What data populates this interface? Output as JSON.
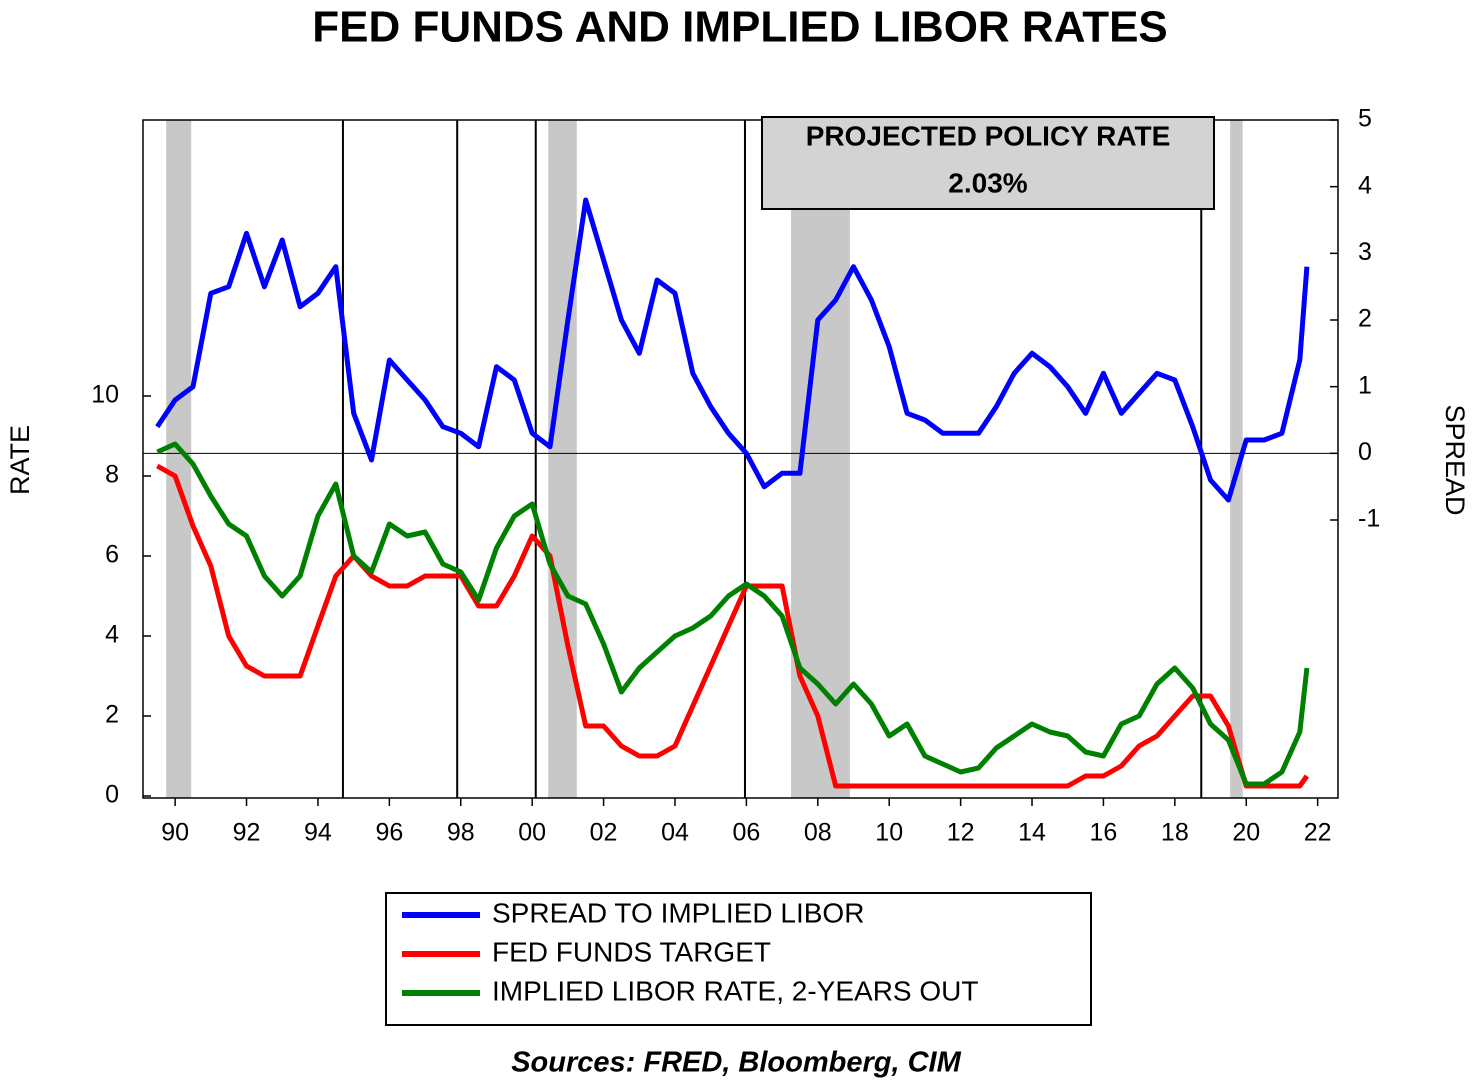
{
  "chart_data": {
    "type": "line",
    "title": "FED FUNDS AND IMPLIED LIBOR RATES",
    "y_label": "RATE",
    "y2_label": "SPREAD",
    "source": "Sources:  FRED, Bloomberg, CIM",
    "annotation": {
      "title": "PROJECTED POLICY RATE",
      "value": 2.03,
      "value_label": "2.03%"
    },
    "xlim": [
      1989.6,
      2023.07
    ],
    "xticks": [
      {
        "value": 1990.5,
        "label": "90"
      },
      {
        "value": 1992.5,
        "label": "92"
      },
      {
        "value": 1994.5,
        "label": "94"
      },
      {
        "value": 1996.5,
        "label": "96"
      },
      {
        "value": 1998.5,
        "label": "98"
      },
      {
        "value": 2000.5,
        "label": "00"
      },
      {
        "value": 2002.5,
        "label": "02"
      },
      {
        "value": 2004.5,
        "label": "04"
      },
      {
        "value": 2006.5,
        "label": "06"
      },
      {
        "value": 2008.5,
        "label": "08"
      },
      {
        "value": 2010.5,
        "label": "10"
      },
      {
        "value": 2012.5,
        "label": "12"
      },
      {
        "value": 2014.5,
        "label": "14"
      },
      {
        "value": 2016.5,
        "label": "16"
      },
      {
        "value": 2018.5,
        "label": "18"
      },
      {
        "value": 2020.5,
        "label": "20"
      },
      {
        "value": 2022.5,
        "label": "22"
      }
    ],
    "ylim": [
      -0.05,
      16.9
    ],
    "yticks": [
      0,
      2,
      4,
      6,
      8,
      10
    ],
    "y2lim": [
      -5.17,
      5
    ],
    "y2ticks": [
      -1,
      0,
      1,
      2,
      3,
      4,
      5
    ],
    "y2_zero_line": 0,
    "recessions": [
      [
        1990.25,
        1990.95
      ],
      [
        2000.95,
        2001.75
      ],
      [
        2007.75,
        2009.4
      ],
      [
        2020.05,
        2020.4
      ]
    ],
    "vlines": [
      1995.2,
      1998.4,
      2000.6,
      2006.46,
      2019.24
    ],
    "x": [
      1990,
      1990.5,
      1991,
      1991.5,
      1992,
      1992.5,
      1993,
      1993.5,
      1994,
      1994.5,
      1995,
      1995.5,
      1996,
      1996.5,
      1997,
      1997.5,
      1998,
      1998.5,
      1999,
      1999.5,
      2000,
      2000.5,
      2001,
      2001.5,
      2002,
      2002.5,
      2003,
      2003.5,
      2004,
      2004.5,
      2005,
      2005.5,
      2006,
      2006.5,
      2007,
      2007.5,
      2008,
      2008.5,
      2009,
      2009.5,
      2010,
      2010.5,
      2011,
      2011.5,
      2012,
      2012.5,
      2013,
      2013.5,
      2014,
      2014.5,
      2015,
      2015.5,
      2016,
      2016.5,
      2017,
      2017.5,
      2018,
      2018.5,
      2019,
      2019.5,
      2020,
      2020.5,
      2021,
      2021.5,
      2022,
      2022.2
    ],
    "series": [
      {
        "name": "SPREAD TO IMPLIED LIBOR",
        "color": "#0000ff",
        "axis": "y2",
        "values": [
          0.4,
          0.8,
          1.0,
          2.4,
          2.5,
          3.3,
          2.5,
          3.2,
          2.2,
          2.4,
          2.8,
          0.6,
          -0.1,
          1.4,
          1.1,
          0.8,
          0.4,
          0.3,
          0.1,
          1.3,
          1.1,
          0.3,
          0.1,
          2.0,
          3.8,
          2.9,
          2.0,
          1.5,
          2.6,
          2.4,
          1.2,
          0.7,
          0.3,
          0.0,
          -0.5,
          -0.3,
          -0.3,
          2.0,
          2.3,
          2.8,
          2.3,
          1.6,
          0.6,
          0.5,
          0.3,
          0.3,
          0.3,
          0.7,
          1.2,
          1.5,
          1.3,
          1.0,
          0.6,
          1.2,
          0.6,
          0.9,
          1.2,
          1.1,
          0.4,
          -0.4,
          -0.7,
          0.2,
          0.2,
          0.3,
          1.4,
          2.8
        ]
      },
      {
        "name": "FED FUNDS TARGET",
        "color": "#ff0000",
        "values": [
          8.25,
          8.0,
          6.75,
          5.75,
          4.0,
          3.25,
          3.0,
          3.0,
          3.0,
          4.25,
          5.5,
          6.0,
          5.5,
          5.25,
          5.25,
          5.5,
          5.5,
          5.5,
          4.75,
          4.75,
          5.5,
          6.5,
          6.0,
          3.75,
          1.75,
          1.75,
          1.25,
          1.0,
          1.0,
          1.25,
          2.25,
          3.25,
          4.25,
          5.25,
          5.25,
          5.25,
          3.0,
          2.0,
          0.25,
          0.25,
          0.25,
          0.25,
          0.25,
          0.25,
          0.25,
          0.25,
          0.25,
          0.25,
          0.25,
          0.25,
          0.25,
          0.25,
          0.5,
          0.5,
          0.75,
          1.25,
          1.5,
          2.0,
          2.5,
          2.5,
          1.75,
          0.25,
          0.25,
          0.25,
          0.25,
          0.5
        ]
      },
      {
        "name": "IMPLIED LIBOR RATE, 2-YEARS OUT",
        "color": "#008000",
        "values": [
          8.6,
          8.8,
          8.3,
          7.5,
          6.8,
          6.5,
          5.5,
          5.0,
          5.5,
          7.0,
          7.8,
          6.0,
          5.6,
          6.8,
          6.5,
          6.6,
          5.8,
          5.6,
          4.9,
          6.2,
          7.0,
          7.3,
          5.8,
          5.0,
          4.8,
          3.8,
          2.6,
          3.2,
          3.6,
          4.0,
          4.2,
          4.5,
          5.0,
          5.3,
          5.0,
          4.5,
          3.2,
          2.8,
          2.3,
          2.8,
          2.3,
          1.5,
          1.8,
          1.0,
          0.8,
          0.6,
          0.7,
          1.2,
          1.5,
          1.8,
          1.6,
          1.5,
          1.1,
          1.0,
          1.8,
          2.0,
          2.8,
          3.2,
          2.7,
          1.8,
          1.4,
          0.3,
          0.3,
          0.6,
          1.6,
          3.2
        ]
      }
    ]
  }
}
